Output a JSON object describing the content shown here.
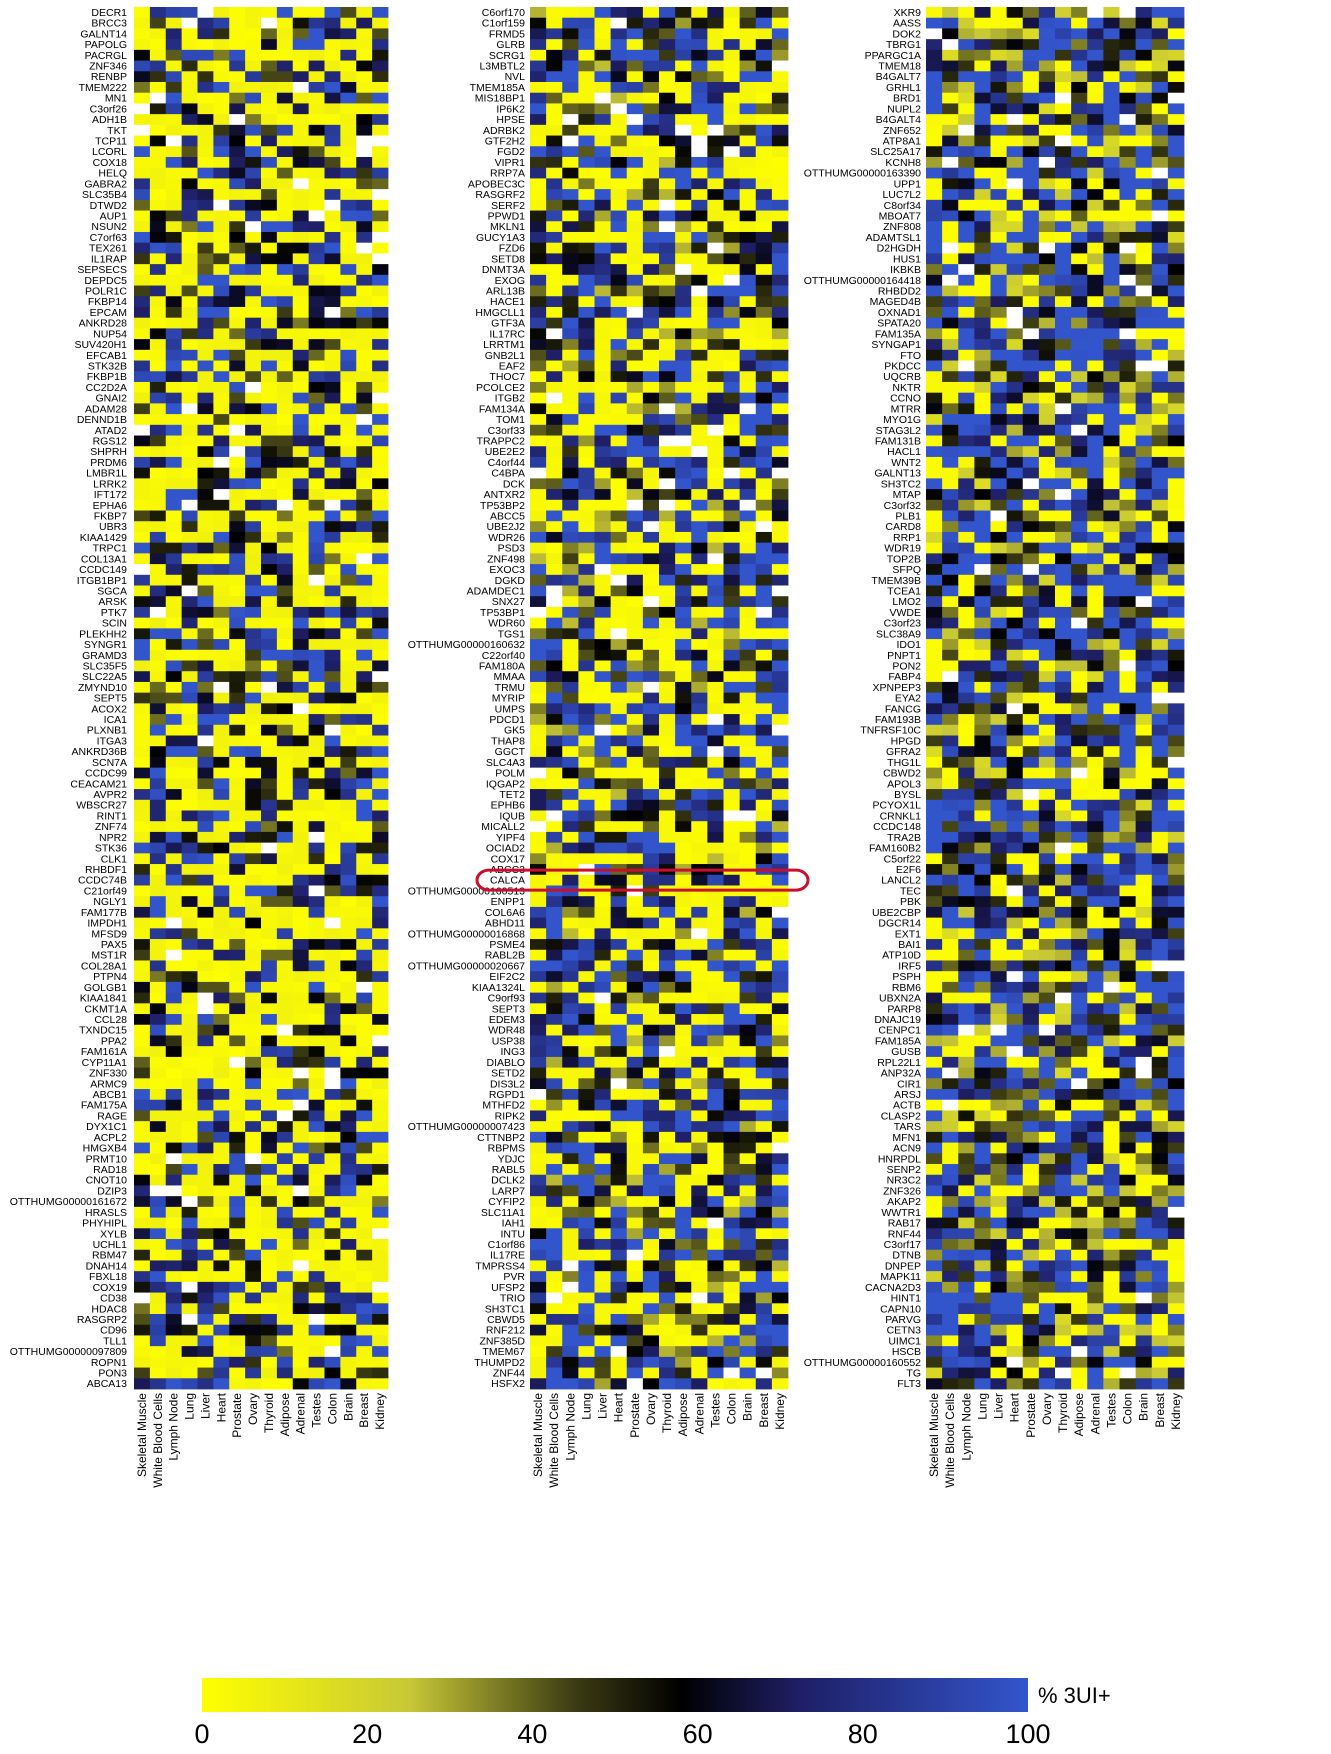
{
  "chart_data": {
    "type": "heatmap",
    "colorbar": {
      "label": "% 3UI+",
      "ticks": [
        "0",
        "20",
        "40",
        "60",
        "80",
        "100"
      ],
      "range": [
        0,
        100
      ],
      "stops": [
        {
          "value": 0,
          "color": "#ffff00"
        },
        {
          "value": 25,
          "color": "#c8c837"
        },
        {
          "value": 45,
          "color": "#3c3c14"
        },
        {
          "value": 58,
          "color": "#000000"
        },
        {
          "value": 72,
          "color": "#1e1e64"
        },
        {
          "value": 100,
          "color": "#3355cc"
        }
      ]
    },
    "columns": [
      "Skeletal Muscle",
      "White Blood Cells",
      "Lymph Node",
      "Lung",
      "Liver",
      "Heart",
      "Prostate",
      "Ovary",
      "Thyroid",
      "Adipose",
      "Adrenal",
      "Testes",
      "Colon",
      "Brain",
      "Breast",
      "Kidney"
    ],
    "panels": [
      {
        "rows": [
          "DECR1",
          "BRCC3",
          "GALNT14",
          "PAPOLG",
          "PACRGL",
          "ZNF346",
          "RENBP",
          "TMEM222",
          "MN1",
          "C3orf26",
          "ADH1B",
          "TKT",
          "TCP11",
          "LCORL",
          "COX18",
          "HELQ",
          "GABRA2",
          "SLC35B4",
          "DTWD2",
          "AUP1",
          "NSUN2",
          "C7orf63",
          "TEX261",
          "IL1RAP",
          "SEPSECS",
          "DEPDC5",
          "POLR1C",
          "FKBP14",
          "EPCAM",
          "ANKRD28",
          "NUP54",
          "SUV420H1",
          "EFCAB1",
          "STK32B",
          "FKBP1B",
          "CC2D2A",
          "GNAI2",
          "ADAM28",
          "DENND1B",
          "ATAD2",
          "RGS12",
          "SHPRH",
          "PRDM6",
          "LMBR1L",
          "LRRK2",
          "IFT172",
          "EPHA6",
          "FKBP7",
          "UBR3",
          "KIAA1429",
          "TRPC1",
          "COL13A1",
          "CCDC149",
          "ITGB1BP1",
          "SGCA",
          "ARSK",
          "PTK7",
          "SCIN",
          "PLEKHH2",
          "SYNGR1",
          "GRAMD3",
          "SLC35F5",
          "SLC22A5",
          "ZMYND10",
          "SEPT5",
          "ACOX2",
          "ICA1",
          "PLXNB1",
          "ITGA3",
          "ANKRD36B",
          "SCN7A",
          "CCDC99",
          "CEACAM21",
          "AVPR2",
          "WBSCR27",
          "RINT1",
          "ZNF74",
          "NPR2",
          "STK36",
          "CLK1",
          "RHBDF1",
          "CCDC74B",
          "C21orf49",
          "NGLY1",
          "FAM177B",
          "IMPDH1",
          "MFSD9",
          "PAX5",
          "MST1R",
          "COL28A1",
          "PTPN4",
          "GOLGB1",
          "KIAA1841",
          "CKMT1A",
          "CCL28",
          "TXNDC15",
          "PPA2",
          "FAM161A",
          "CYP11A1",
          "ZNF330",
          "ARMC9",
          "ABCB1",
          "FAM175A",
          "RAGE",
          "DYX1C1",
          "ACPL2",
          "HMGXB4",
          "PRMT10",
          "RAD18",
          "CNOT10",
          "DZIP3",
          "OTTHUMG00000161672",
          "HRASLS",
          "PHYHIPL",
          "XYLB",
          "UCHL1",
          "RBM47",
          "DNAH14",
          "FBXL18",
          "COX19",
          "CD38",
          "HDAC8",
          "RASGRP2",
          "CD96",
          "TLL1",
          "OTTHUMG00000097809",
          "ROPN1",
          "PON3",
          "ABCA13"
        ]
      },
      {
        "rows": [
          "C6orf170",
          "C1orf159",
          "FRMD5",
          "GLRB",
          "SCRG1",
          "L3MBTL2",
          "NVL",
          "TMEM185A",
          "MIS18BP1",
          "IP6K2",
          "HPSE",
          "ADRBK2",
          "GTF2H2",
          "FGD2",
          "VIPR1",
          "RRP7A",
          "APOBEC3C",
          "RASGRF2",
          "SERF2",
          "PPWD1",
          "MKLN1",
          "GUCY1A3",
          "FZD6",
          "SETD8",
          "DNMT3A",
          "EXOG",
          "ARL13B",
          "HACE1",
          "HMGCLL1",
          "GTF3A",
          "IL17RC",
          "LRRTM1",
          "GNB2L1",
          "EAF2",
          "THOC7",
          "PCOLCE2",
          "ITGB2",
          "FAM134A",
          "TOM1",
          "C3orf33",
          "TRAPPC2",
          "UBE2E2",
          "C4orf44",
          "C4BPA",
          "DCK",
          "ANTXR2",
          "TP53BP2",
          "ABCC5",
          "UBE2J2",
          "WDR26",
          "PSD3",
          "ZNF498",
          "EXOC3",
          "DGKD",
          "ADAMDEC1",
          "SNX27",
          "TP53BP1",
          "WDR60",
          "TGS1",
          "OTTHUMG00000160632",
          "C22orf40",
          "FAM180A",
          "MMAA",
          "TRMU",
          "MYRIP",
          "UMPS",
          "PDCD1",
          "GK5",
          "THAP8",
          "GGCT",
          "SLC4A3",
          "POLM",
          "IQGAP2",
          "TET2",
          "EPHB6",
          "IQUB",
          "MICALL2",
          "YIPF4",
          "OCIAD2",
          "COX17",
          "ABCC3",
          "CALCA",
          "OTTHUMG00000160513",
          "ENPP1",
          "COL6A6",
          "ABHD11",
          "OTTHUMG00000016868",
          "PSME4",
          "RABL2B",
          "OTTHUMG00000020667",
          "EIF2C2",
          "KIAA1324L",
          "C9orf93",
          "SEPT3",
          "EDEM3",
          "WDR48",
          "USP38",
          "ING3",
          "DIABLO",
          "SETD2",
          "DIS3L2",
          "RGPD1",
          "MTHFD2",
          "RIPK2",
          "OTTHUMG00000007423",
          "CTTNBP2",
          "RBPMS",
          "YDJC",
          "RABL5",
          "DCLK2",
          "LARP7",
          "CYFIP2",
          "SLC11A1",
          "IAH1",
          "INTU",
          "C1orf86",
          "IL17RE",
          "TMPRSS4",
          "PVR",
          "UFSP2",
          "TRIO",
          "SH3TC1",
          "CBWD5",
          "RNF212",
          "ZNF385D",
          "TMEM67",
          "THUMPD2",
          "ZNF44",
          "HSFX2"
        ],
        "highlighted_row": "CALCA"
      },
      {
        "rows": [
          "XKR9",
          "AASS",
          "DOK2",
          "TBRG1",
          "PPARGC1A",
          "TMEM18",
          "B4GALT7",
          "GRHL1",
          "BRD1",
          "NUPL2",
          "B4GALT4",
          "ZNF652",
          "ATP8A1",
          "SLC25A17",
          "KCNH8",
          "OTTHUMG00000163390",
          "UPP1",
          "LUC7L2",
          "C8orf34",
          "MBOAT7",
          "ZNF808",
          "ADAMTSL1",
          "D2HGDH",
          "HUS1",
          "IKBKB",
          "OTTHUMG00000164418",
          "RHBDD2",
          "MAGED4B",
          "OXNAD1",
          "SPATA20",
          "FAM135A",
          "SYNGAP1",
          "FTO",
          "PKDCC",
          "UQCRB",
          "NKTR",
          "CCNO",
          "MTRR",
          "MYO1G",
          "STAG3L2",
          "FAM131B",
          "HACL1",
          "WNT2",
          "GALNT13",
          "SH3TC2",
          "MTAP",
          "C3orf32",
          "PLB1",
          "CARD8",
          "RRP1",
          "WDR19",
          "TOP2B",
          "SFPQ",
          "TMEM39B",
          "TCEA1",
          "LMO2",
          "VWDE",
          "C3orf23",
          "SLC38A9",
          "IDO1",
          "PNPT1",
          "PON2",
          "FABP4",
          "XPNPEP3",
          "EYA2",
          "FANCG",
          "FAM193B",
          "TNFRSF10C",
          "HPGD",
          "GFRA2",
          "THG1L",
          "CBWD2",
          "APOL3",
          "BYSL",
          "PCYOX1L",
          "CRNKL1",
          "CCDC148",
          "TRA2B",
          "FAM160B2",
          "C5orf22",
          "E2F6",
          "LANCL2",
          "TEC",
          "PBK",
          "UBE2CBP",
          "DGCR14",
          "EXT1",
          "BAI1",
          "ATP10D",
          "IRF5",
          "PSPH",
          "RBM6",
          "UBXN2A",
          "PARP8",
          "DNAJC19",
          "CENPC1",
          "FAM185A",
          "GUSB",
          "RPL22L1",
          "ANP32A",
          "CIR1",
          "ARSJ",
          "ACTB",
          "CLASP2",
          "TARS",
          "MFN1",
          "ACN9",
          "HNRPDL",
          "SENP2",
          "NR3C2",
          "ZNF326",
          "AKAP2",
          "WWTR1",
          "RAB17",
          "RNF44",
          "C3orf17",
          "DTNB",
          "DNPEP",
          "MAPK11",
          "CACNA2D3",
          "HINT1",
          "CAPN10",
          "PARVG",
          "CETN3",
          "UIMC1",
          "HSCB",
          "OTTHUMG00000160552",
          "TG",
          "FLT3"
        ]
      }
    ]
  }
}
